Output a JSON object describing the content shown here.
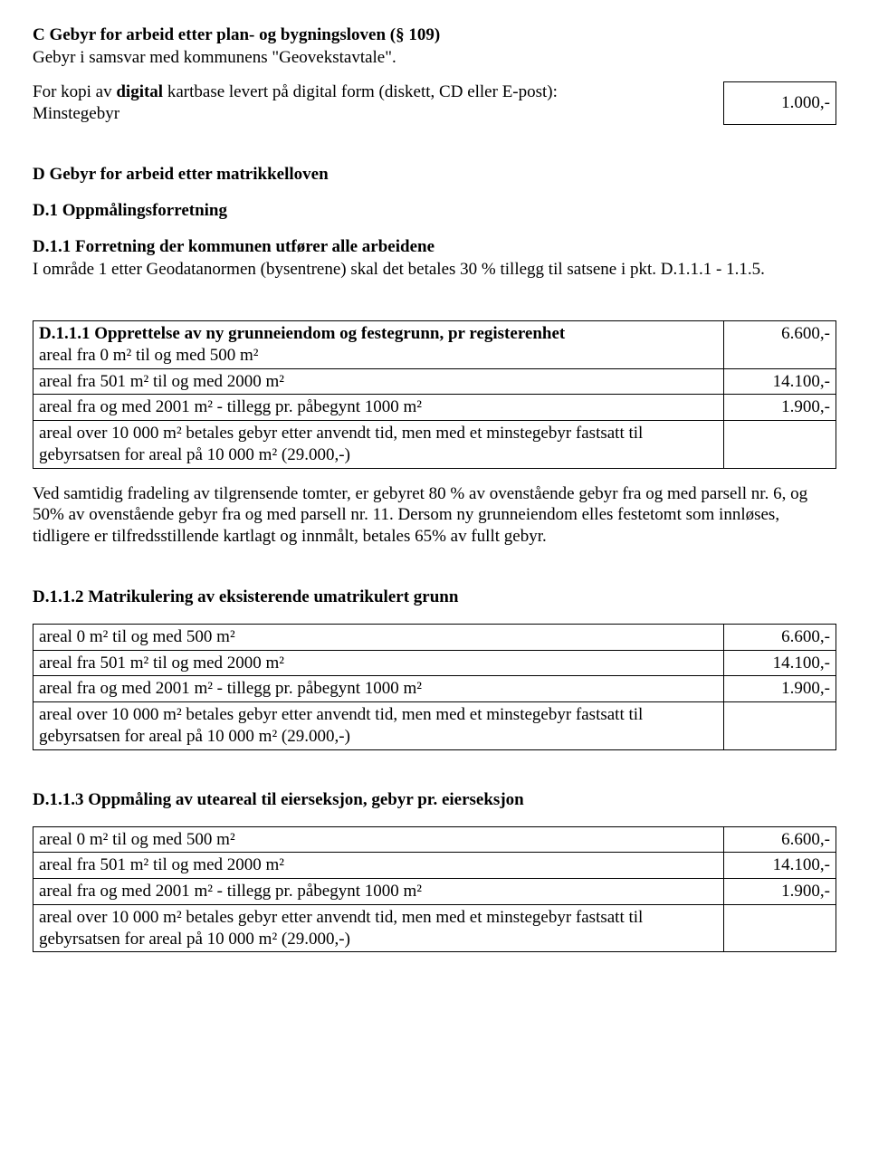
{
  "sectionC": {
    "heading": "C Gebyr for arbeid etter plan- og bygningsloven (§ 109)",
    "subtitle": "Gebyr i samsvar med kommunens \"Geovekstavtale\".",
    "row": {
      "prefix": "For kopi av ",
      "bold": "digital",
      "suffix": " kartbase levert på digital form (diskett, CD eller E-post):",
      "line2": "Minstegebyr",
      "value": "1.000,-"
    }
  },
  "sectionD": {
    "heading": "D Gebyr for arbeid etter matrikkelloven",
    "d1": {
      "heading": "D.1 Oppmålingsforretning",
      "d11": {
        "heading": "D.1.1 Forretning der kommunen utfører alle arbeidene",
        "para": "I område 1 etter Geodatanormen (bysentrene) skal det betales 30 % tillegg til satsene i pkt. D.1.1.1 - 1.1.5."
      }
    }
  },
  "d111": {
    "heading": "D.1.1.1 Opprettelse av ny grunneiendom og festegrunn, pr registerenhet",
    "table": {
      "rows": [
        {
          "desc": "areal fra 0 m² til og med 500 m²",
          "val": "6.600,-"
        },
        {
          "desc": "areal fra 501 m² til og med 2000 m²",
          "val": "14.100,-"
        },
        {
          "desc": "areal fra og med 2001 m² - tillegg pr. påbegynt 1000 m²",
          "val": "1.900,-"
        },
        {
          "desc": "areal over 10 000 m² betales gebyr etter anvendt tid, men med et minstegebyr fastsatt til gebyrsatsen for areal på 10 000 m² (29.000,-)",
          "val": ""
        }
      ]
    },
    "note": "Ved samtidig fradeling av tilgrensende tomter, er gebyret 80 % av ovenstående gebyr fra og med parsell nr. 6, og 50% av ovenstående gebyr fra og med parsell nr. 11. Dersom ny grunneiendom elles festetomt som innløses, tidligere er tilfredsstillende kartlagt og innmålt, betales 65% av fullt gebyr."
  },
  "d112": {
    "heading": "D.1.1.2 Matrikulering av eksisterende umatrikulert grunn",
    "table": {
      "rows": [
        {
          "desc": "areal 0 m² til og med 500 m²",
          "val": "6.600,-"
        },
        {
          "desc": "areal fra 501 m² til og med 2000 m²",
          "val": "14.100,-"
        },
        {
          "desc": "areal fra og med 2001 m² - tillegg pr. påbegynt 1000 m²",
          "val": "1.900,-"
        },
        {
          "desc": "areal over 10 000 m² betales gebyr etter anvendt tid, men med et minstegebyr fastsatt til gebyrsatsen for areal på 10 000 m² (29.000,-)",
          "val": ""
        }
      ]
    }
  },
  "d113": {
    "heading": "D.1.1.3 Oppmåling av uteareal til eierseksjon, gebyr pr. eierseksjon",
    "table": {
      "rows": [
        {
          "desc": "areal 0 m² til og med 500 m²",
          "val": "6.600,-"
        },
        {
          "desc": "areal fra 501 m² til og med 2000 m²",
          "val": "14.100,-"
        },
        {
          "desc": "areal fra og med 2001 m² - tillegg pr. påbegynt 1000 m²",
          "val": "1.900,-"
        },
        {
          "desc": "areal over 10 000 m² betales gebyr etter anvendt tid, men med et minstegebyr fastsatt til gebyrsatsen for areal på 10 000 m² (29.000,-)",
          "val": ""
        }
      ]
    }
  }
}
